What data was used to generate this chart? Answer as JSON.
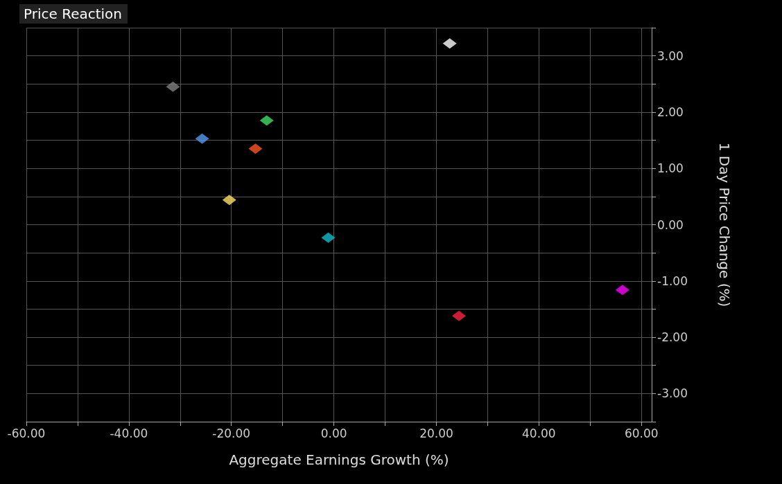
{
  "chart_data": {
    "type": "scatter",
    "title": "Price Reaction",
    "xlabel": "Aggregate Earnings Growth (%)",
    "ylabel": "1 Day Price Change (%)",
    "x": [
      22.6,
      -31.4,
      -13.1,
      -25.7,
      -15.3,
      -20.4,
      -1.1,
      56.3,
      24.4
    ],
    "values": [
      3.22,
      2.45,
      1.85,
      1.53,
      1.35,
      0.44,
      -0.23,
      -1.16,
      -1.62
    ],
    "colors": [
      "#ffffff",
      "#808080",
      "#44dd66",
      "#5599ee",
      "#ff5522",
      "#ffe066",
      "#11bbcc",
      "#ff00ff",
      "#ff2244"
    ],
    "marker": "diamond",
    "grid": true,
    "xlim": [
      -60,
      62
    ],
    "xticks": [
      {
        "value": -60,
        "label": "-60.00"
      },
      {
        "value": -50,
        "label": null
      },
      {
        "value": -40,
        "label": "-40.00"
      },
      {
        "value": -30,
        "label": null
      },
      {
        "value": -20,
        "label": "-20.00"
      },
      {
        "value": -10,
        "label": null
      },
      {
        "value": 0,
        "label": "0.00"
      },
      {
        "value": 10,
        "label": null
      },
      {
        "value": 20,
        "label": "20.00"
      },
      {
        "value": 30,
        "label": null
      },
      {
        "value": 40,
        "label": "40.00"
      },
      {
        "value": 50,
        "label": null
      },
      {
        "value": 60,
        "label": "60.00"
      }
    ],
    "ylim": [
      -3.5,
      3.5
    ],
    "yticks": [
      {
        "value": -3.5,
        "label": null
      },
      {
        "value": -3,
        "label": "-3.00"
      },
      {
        "value": -2.5,
        "label": null
      },
      {
        "value": -2,
        "label": "-2.00"
      },
      {
        "value": -1.5,
        "label": null
      },
      {
        "value": -1,
        "label": "-1.00"
      },
      {
        "value": -0.5,
        "label": null
      },
      {
        "value": 0,
        "label": "0.00"
      },
      {
        "value": 0.5,
        "label": null
      },
      {
        "value": 1,
        "label": "1.00"
      },
      {
        "value": 1.5,
        "label": null
      },
      {
        "value": 2,
        "label": "2.00"
      },
      {
        "value": 2.5,
        "label": null
      },
      {
        "value": 3,
        "label": "3.00"
      },
      {
        "value": 3.5,
        "label": null
      }
    ]
  }
}
